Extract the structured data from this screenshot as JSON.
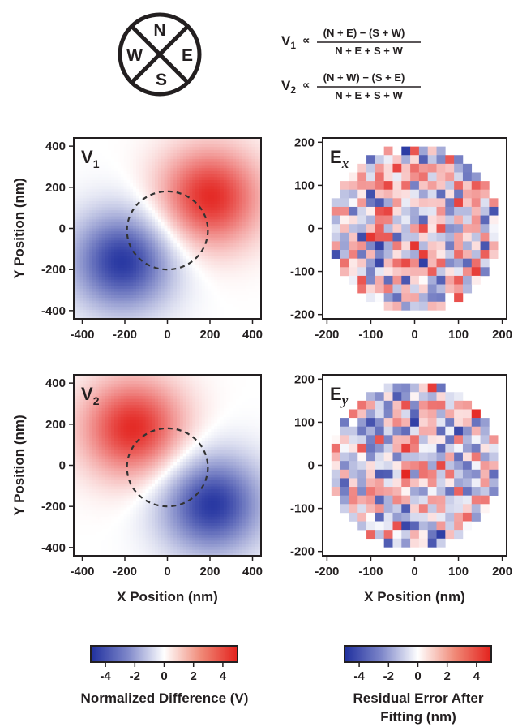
{
  "compass": {
    "north": "N",
    "east": "E",
    "south": "S",
    "west": "W"
  },
  "formulas": [
    {
      "symbol": "V",
      "subscript": "1",
      "relation": "∝",
      "numerator": "(N + E) − (S + W)",
      "denominator": "N + E + S + W"
    },
    {
      "symbol": "V",
      "subscript": "2",
      "relation": "∝",
      "numerator": "(N + W) − (S + E)",
      "denominator": "N + E + S + W"
    }
  ],
  "colors": {
    "negative": "#1f2f9e",
    "zero": "#ffffff",
    "positive": "#e3211c",
    "dashed_circle": "#333333"
  },
  "chart_data": [
    {
      "id": "V1",
      "type": "heatmap",
      "label": "V",
      "label_subscript": "1",
      "xlabel": "",
      "ylabel": "Y Position (nm)",
      "xlim": [
        -440,
        440
      ],
      "ylim": [
        -440,
        440
      ],
      "xticks": [
        "-400",
        "-200",
        "0",
        "200",
        "400"
      ],
      "yticks": [
        "400",
        "200",
        "0",
        "-200",
        "-400"
      ],
      "grid": false,
      "field": {
        "formula": "amplitude*(exp(-((x-x1)^2+(y-y1)^2)/(2*s^2)) - exp(-((x-x2)^2+(y-y2)^2)/(2*s^2)))",
        "amplitude": 4.8,
        "positive_peak_nm": [
          200,
          150
        ],
        "negative_peak_nm": [
          -210,
          -160
        ],
        "sigma_nm": 170,
        "resolution": 60
      },
      "overlay": {
        "shape": "dashed circle",
        "center_nm": [
          0,
          -10
        ],
        "radius_nm": 190
      }
    },
    {
      "id": "Ex",
      "type": "heatmap",
      "label": "E",
      "label_subscript": "x",
      "xlabel": "",
      "ylabel": "",
      "xlim": [
        -210,
        210
      ],
      "ylim": [
        -210,
        210
      ],
      "xticks": [
        "-200",
        "-100",
        "0",
        "100",
        "200"
      ],
      "yticks": [
        "200",
        "100",
        "0",
        "-100",
        "-200"
      ],
      "grid": false,
      "pixels": {
        "grid_n": 19,
        "cell_nm": 20,
        "support_radius_nm": 190,
        "value_range": [
          -5,
          5
        ],
        "seed": 17
      }
    },
    {
      "id": "V2",
      "type": "heatmap",
      "label": "V",
      "label_subscript": "2",
      "xlabel": "X Position (nm)",
      "ylabel": "Y Position (nm)",
      "xlim": [
        -440,
        440
      ],
      "ylim": [
        -440,
        440
      ],
      "xticks": [
        "-400",
        "-200",
        "0",
        "200",
        "400"
      ],
      "yticks": [
        "400",
        "200",
        "0",
        "-200",
        "-400"
      ],
      "grid": false,
      "field": {
        "formula": "amplitude*(exp(-((x-x1)^2+(y-y1)^2)/(2*s^2)) - exp(-((x-x2)^2+(y-y2)^2)/(2*s^2)))",
        "amplitude": 4.8,
        "positive_peak_nm": [
          -160,
          180
        ],
        "negative_peak_nm": [
          210,
          -190
        ],
        "sigma_nm": 170,
        "resolution": 60
      },
      "overlay": {
        "shape": "dashed circle",
        "center_nm": [
          0,
          -10
        ],
        "radius_nm": 190
      }
    },
    {
      "id": "Ey",
      "type": "heatmap",
      "label": "E",
      "label_subscript": "y",
      "xlabel": "X Position (nm)",
      "ylabel": "",
      "xlim": [
        -210,
        210
      ],
      "ylim": [
        -210,
        210
      ],
      "xticks": [
        "-200",
        "-100",
        "0",
        "100",
        "200"
      ],
      "yticks": [
        "200",
        "100",
        "0",
        "-100",
        "-200"
      ],
      "grid": false,
      "pixels": {
        "grid_n": 19,
        "cell_nm": 20,
        "support_radius_nm": 190,
        "value_range": [
          -5,
          5
        ],
        "seed": 91
      }
    }
  ],
  "colorbars": [
    {
      "id": "cb-voltage",
      "range": [
        -5,
        5
      ],
      "ticks": [
        "-4",
        "-2",
        "0",
        "2",
        "4"
      ],
      "label": "Normalized Difference (V)"
    },
    {
      "id": "cb-error",
      "range": [
        -5,
        5
      ],
      "ticks": [
        "-4",
        "-2",
        "0",
        "2",
        "4"
      ],
      "label_lines": [
        "Residual Error After",
        "Fitting (nm)"
      ]
    }
  ]
}
